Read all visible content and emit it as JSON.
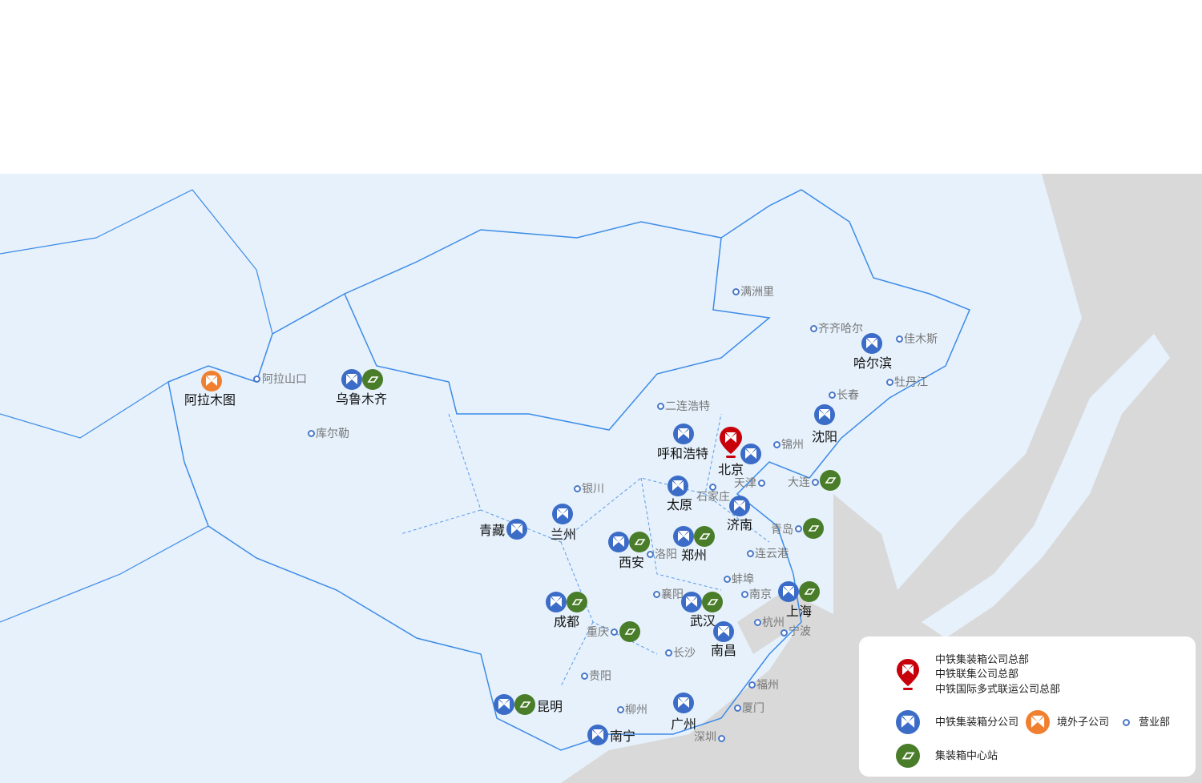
{
  "colors": {
    "headquarters": "#c8000a",
    "branch": "#3b6cc7",
    "overseas": "#f08030",
    "hub": "#4a7d2a",
    "office": "#4a78c8",
    "land": "#e6f1fb",
    "sea": "#d9d9d9",
    "border": "#3d8be8"
  },
  "cities": [
    {
      "name": "阿拉木图",
      "type": "overseas"
    },
    {
      "name": "阿拉山口",
      "type": "office"
    },
    {
      "name": "乌鲁木齐",
      "type": "branch+hub"
    },
    {
      "name": "库尔勒",
      "type": "office"
    },
    {
      "name": "满洲里",
      "type": "office"
    },
    {
      "name": "齐齐哈尔",
      "type": "office"
    },
    {
      "name": "佳木斯",
      "type": "office"
    },
    {
      "name": "哈尔滨",
      "type": "branch"
    },
    {
      "name": "牡丹江",
      "type": "office"
    },
    {
      "name": "长春",
      "type": "office"
    },
    {
      "name": "沈阳",
      "type": "branch"
    },
    {
      "name": "二连浩特",
      "type": "office"
    },
    {
      "name": "呼和浩特",
      "type": "branch"
    },
    {
      "name": "北京",
      "type": "headquarters+branch"
    },
    {
      "name": "锦州",
      "type": "office"
    },
    {
      "name": "天津",
      "type": "office"
    },
    {
      "name": "大连",
      "type": "office+hub"
    },
    {
      "name": "太原",
      "type": "branch"
    },
    {
      "name": "石家庄",
      "type": "office"
    },
    {
      "name": "银川",
      "type": "office"
    },
    {
      "name": "济南",
      "type": "branch"
    },
    {
      "name": "青岛",
      "type": "office+hub"
    },
    {
      "name": "青藏",
      "type": "branch"
    },
    {
      "name": "兰州",
      "type": "branch"
    },
    {
      "name": "西安",
      "type": "branch+hub"
    },
    {
      "name": "洛阳",
      "type": "office"
    },
    {
      "name": "郑州",
      "type": "branch+hub"
    },
    {
      "name": "连云港",
      "type": "office"
    },
    {
      "name": "蚌埠",
      "type": "office"
    },
    {
      "name": "襄阳",
      "type": "office"
    },
    {
      "name": "南京",
      "type": "office"
    },
    {
      "name": "上海",
      "type": "branch+hub"
    },
    {
      "name": "成都",
      "type": "branch+hub"
    },
    {
      "name": "武汉",
      "type": "branch+hub"
    },
    {
      "name": "重庆",
      "type": "office+hub"
    },
    {
      "name": "杭州",
      "type": "office"
    },
    {
      "name": "宁波",
      "type": "office"
    },
    {
      "name": "南昌",
      "type": "branch"
    },
    {
      "name": "长沙",
      "type": "office"
    },
    {
      "name": "贵阳",
      "type": "office"
    },
    {
      "name": "福州",
      "type": "office"
    },
    {
      "name": "昆明",
      "type": "branch+hub"
    },
    {
      "name": "柳州",
      "type": "office"
    },
    {
      "name": "广州",
      "type": "branch"
    },
    {
      "name": "厦门",
      "type": "office"
    },
    {
      "name": "南宁",
      "type": "branch"
    },
    {
      "name": "深圳",
      "type": "office"
    }
  ],
  "legend": {
    "headquarters": [
      "中铁集装箱公司总部",
      "中铁联集公司总部",
      "中铁国际多式联运公司总部"
    ],
    "branch": "中铁集装箱分公司",
    "overseas": "境外子公司",
    "office": "营业部",
    "hub": "集装箱中心站"
  }
}
